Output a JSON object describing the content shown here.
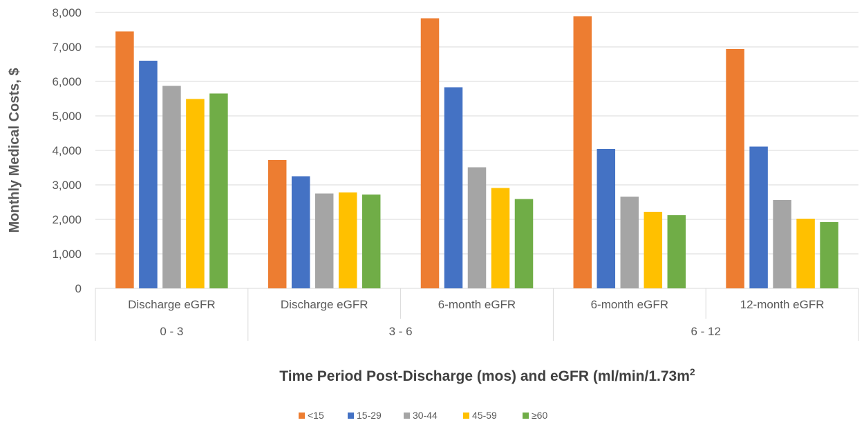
{
  "chart_data": {
    "type": "bar",
    "ylabel": "Monthly Medical Costs, $",
    "xlabel_main": "Time Period Post-Discharge (mos) and eGFR (ml/min/1.73m",
    "xlabel_sup": "2",
    "ylim": [
      0,
      8000
    ],
    "yticks": [
      0,
      1000,
      2000,
      3000,
      4000,
      5000,
      6000,
      7000,
      8000
    ],
    "ytick_labels": [
      "0",
      "1,000",
      "2,000",
      "3,000",
      "4,000",
      "5,000",
      "6,000",
      "7,000",
      "8,000"
    ],
    "categories": [
      "Discharge eGFR",
      "Discharge eGFR",
      "6-month eGFR",
      "6-month eGFR",
      "12-month eGFR"
    ],
    "groups": [
      {
        "label": "0 - 3",
        "span": 1
      },
      {
        "label": "3 - 6",
        "span": 2
      },
      {
        "label": "6 - 12",
        "span": 2
      }
    ],
    "series": [
      {
        "name": "<15",
        "color": "#ED7D31",
        "values": [
          7450,
          3720,
          7830,
          7890,
          6940
        ]
      },
      {
        "name": "15-29",
        "color": "#4472C4",
        "values": [
          6600,
          3250,
          5830,
          4040,
          4110
        ]
      },
      {
        "name": "30-44",
        "color": "#A5A5A5",
        "values": [
          5870,
          2750,
          3510,
          2660,
          2560
        ]
      },
      {
        "name": "45-59",
        "color": "#FFC000",
        "values": [
          5490,
          2780,
          2910,
          2220,
          2020
        ]
      },
      {
        "name": "≥60",
        "color": "#70AD47",
        "values": [
          5650,
          2720,
          2590,
          2120,
          1920
        ]
      }
    ],
    "legend_position": "bottom",
    "grid": true
  }
}
